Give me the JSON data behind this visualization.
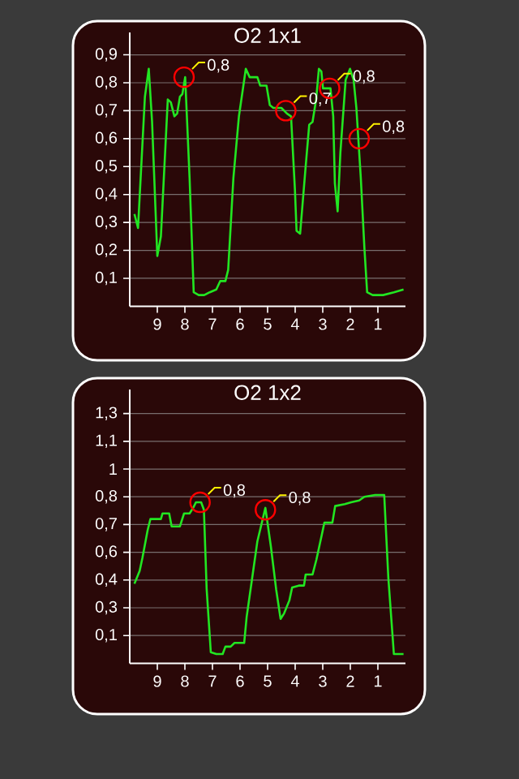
{
  "chart_data": [
    {
      "type": "line",
      "title": "O2 1x1",
      "color": "#22e622",
      "grid": "y",
      "xlim": [
        10,
        0
      ],
      "xticks": [
        9,
        8,
        7,
        6,
        5,
        4,
        3,
        2,
        1
      ],
      "ylim": [
        0,
        0.98
      ],
      "yticks": [
        {
          "value": 0.1,
          "label": "0,1"
        },
        {
          "value": 0.2,
          "label": "0,2"
        },
        {
          "value": 0.3,
          "label": "0,3"
        },
        {
          "value": 0.4,
          "label": "0,4"
        },
        {
          "value": 0.5,
          "label": "0,5"
        },
        {
          "value": 0.6,
          "label": "0,6"
        },
        {
          "value": 0.7,
          "label": "0,7"
        },
        {
          "value": 0.8,
          "label": "0,8"
        },
        {
          "value": 0.9,
          "label": "0,9"
        }
      ],
      "x": [
        9.83,
        9.7,
        9.45,
        9.31,
        9.19,
        9.0,
        8.87,
        8.62,
        8.51,
        8.38,
        8.28,
        8.18,
        8.09,
        7.99,
        7.83,
        7.68,
        7.5,
        7.3,
        7.1,
        6.86,
        6.72,
        6.53,
        6.43,
        6.24,
        6.04,
        5.79,
        5.65,
        5.37,
        5.27,
        5.04,
        4.92,
        4.79,
        4.5,
        4.3,
        4.15,
        4.01,
        3.95,
        3.82,
        3.62,
        3.49,
        3.37,
        3.24,
        3.14,
        3.05,
        2.99,
        2.72,
        2.62,
        2.56,
        2.46,
        2.36,
        2.17,
        2.01,
        1.88,
        1.78,
        1.62,
        1.49,
        1.39,
        1.19,
        0.81,
        0.42,
        0.07
      ],
      "values": [
        0.33,
        0.28,
        0.75,
        0.85,
        0.66,
        0.18,
        0.25,
        0.74,
        0.73,
        0.68,
        0.69,
        0.75,
        0.76,
        0.82,
        0.46,
        0.05,
        0.04,
        0.04,
        0.05,
        0.06,
        0.09,
        0.09,
        0.13,
        0.46,
        0.68,
        0.85,
        0.82,
        0.82,
        0.79,
        0.79,
        0.72,
        0.71,
        0.71,
        0.69,
        0.68,
        0.42,
        0.27,
        0.26,
        0.5,
        0.65,
        0.66,
        0.74,
        0.85,
        0.84,
        0.78,
        0.78,
        0.68,
        0.44,
        0.34,
        0.55,
        0.81,
        0.85,
        0.81,
        0.71,
        0.46,
        0.21,
        0.05,
        0.04,
        0.04,
        0.05,
        0.06
      ],
      "annotations": [
        {
          "text": "0,8",
          "x": 8.03,
          "y": 0.82
        },
        {
          "text": "0,7",
          "x": 4.34,
          "y": 0.7
        },
        {
          "text": "0,8",
          "x": 2.75,
          "y": 0.78
        },
        {
          "text": "0,8",
          "x": 1.68,
          "y": 0.6
        }
      ]
    },
    {
      "type": "line",
      "title": "O2 1x2",
      "color": "#22e622",
      "grid": "y",
      "xlim": [
        10,
        0
      ],
      "xticks": [
        9,
        8,
        7,
        6,
        5,
        4,
        3,
        2,
        1
      ],
      "ylim": [
        -0.05,
        1.43
      ],
      "yticks": [
        {
          "value": 0.1,
          "label": "0,1"
        },
        {
          "value": 0.25,
          "label": "0,3"
        },
        {
          "value": 0.4,
          "label": "0,4"
        },
        {
          "value": 0.55,
          "label": "0,6"
        },
        {
          "value": 0.7,
          "label": "0,7"
        },
        {
          "value": 0.85,
          "label": "0,8"
        },
        {
          "value": 1.0,
          "label": "1"
        },
        {
          "value": 1.15,
          "label": "1,1"
        },
        {
          "value": 1.3,
          "label": "1,3"
        }
      ],
      "x": [
        9.83,
        9.64,
        9.54,
        9.35,
        9.25,
        9.06,
        8.87,
        8.81,
        8.57,
        8.48,
        8.18,
        8.03,
        7.83,
        7.7,
        7.6,
        7.41,
        7.31,
        7.21,
        7.06,
        6.86,
        6.63,
        6.53,
        6.34,
        6.2,
        5.85,
        5.76,
        5.56,
        5.37,
        5.08,
        4.88,
        4.69,
        4.53,
        4.4,
        4.21,
        4.11,
        3.87,
        3.68,
        3.62,
        3.37,
        3.23,
        3.04,
        2.94,
        2.65,
        2.55,
        2.2,
        1.97,
        1.68,
        1.49,
        1.1,
        0.77,
        0.62,
        0.42,
        0.07
      ],
      "values": [
        0.38,
        0.45,
        0.52,
        0.67,
        0.73,
        0.73,
        0.73,
        0.76,
        0.76,
        0.69,
        0.69,
        0.76,
        0.76,
        0.79,
        0.82,
        0.82,
        0.78,
        0.35,
        0.01,
        0.0,
        0.0,
        0.04,
        0.04,
        0.06,
        0.06,
        0.2,
        0.41,
        0.61,
        0.79,
        0.58,
        0.35,
        0.19,
        0.22,
        0.29,
        0.36,
        0.37,
        0.37,
        0.43,
        0.43,
        0.51,
        0.64,
        0.71,
        0.71,
        0.8,
        0.81,
        0.82,
        0.83,
        0.85,
        0.86,
        0.86,
        0.41,
        0.0,
        0.0
      ],
      "annotations": [
        {
          "text": "0,8",
          "x": 7.45,
          "y": 0.82
        },
        {
          "text": "0,8",
          "x": 5.08,
          "y": 0.78
        }
      ]
    }
  ]
}
